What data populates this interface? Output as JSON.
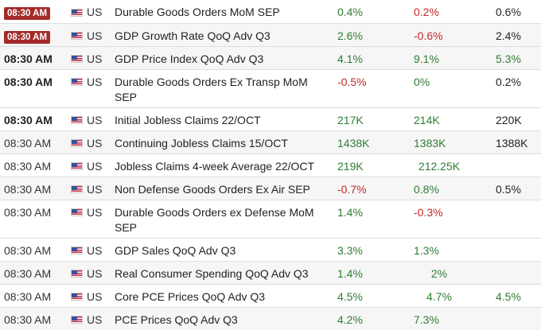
{
  "colors": {
    "badge_bg": "#a52a2a",
    "positive": "#2e7d32",
    "negative": "#c62828",
    "neutral": "#222222"
  },
  "rows": [
    {
      "time": "08:30 AM",
      "time_style": "badge",
      "country": "US",
      "event": "Durable Goods Orders MoM SEP",
      "actual": "0.4%",
      "actual_color": "green",
      "forecast": "0.2%",
      "forecast_color": "red",
      "previous": "0.6%",
      "previous_color": "dark"
    },
    {
      "time": "08:30 AM",
      "time_style": "badge",
      "country": "US",
      "event": "GDP Growth Rate QoQ Adv Q3",
      "actual": "2.6%",
      "actual_color": "green",
      "forecast": "-0.6%",
      "forecast_color": "red",
      "previous": "2.4%",
      "previous_color": "dark"
    },
    {
      "time": "08:30 AM",
      "time_style": "bold",
      "country": "US",
      "event": "GDP Price Index QoQ Adv Q3",
      "actual": "4.1%",
      "actual_color": "green",
      "forecast": "9.1%",
      "forecast_color": "green",
      "previous": "5.3%",
      "previous_color": "green"
    },
    {
      "time": "08:30 AM",
      "time_style": "bold",
      "country": "US",
      "event": "Durable Goods Orders Ex Transp MoM SEP",
      "actual": "-0.5%",
      "actual_color": "red",
      "forecast": "0%",
      "forecast_color": "green",
      "previous": "0.2%",
      "previous_color": "dark"
    },
    {
      "time": "08:30 AM",
      "time_style": "bold",
      "country": "US",
      "event": "Initial Jobless Claims 22/OCT",
      "actual": "217K",
      "actual_color": "green",
      "forecast": "214K",
      "forecast_color": "green",
      "previous": "220K",
      "previous_color": "dark"
    },
    {
      "time": "08:30 AM",
      "time_style": "normal",
      "country": "US",
      "event": "Continuing Jobless Claims 15/OCT",
      "actual": "1438K",
      "actual_color": "green",
      "forecast": "1383K",
      "forecast_color": "green",
      "previous": "1388K",
      "previous_color": "dark"
    },
    {
      "time": "08:30 AM",
      "time_style": "normal",
      "country": "US",
      "event": "Jobless Claims 4-week Average 22/OCT",
      "actual": "219K",
      "actual_color": "green",
      "forecast": "212.25K",
      "forecast_color": "green",
      "previous": "",
      "previous_color": "dark"
    },
    {
      "time": "08:30 AM",
      "time_style": "normal",
      "country": "US",
      "event": "Non Defense Goods Orders Ex Air SEP",
      "actual": "-0.7%",
      "actual_color": "red",
      "forecast": "0.8%",
      "forecast_color": "green",
      "previous": "0.5%",
      "previous_color": "dark"
    },
    {
      "time": "08:30 AM",
      "time_style": "normal",
      "country": "US",
      "event": "Durable Goods Orders ex Defense MoM SEP",
      "actual": "1.4%",
      "actual_color": "green",
      "forecast": "-0.3%",
      "forecast_color": "red",
      "previous": "",
      "previous_color": "dark"
    },
    {
      "time": "08:30 AM",
      "time_style": "normal",
      "country": "US",
      "event": "GDP Sales QoQ Adv Q3",
      "actual": "3.3%",
      "actual_color": "green",
      "forecast": "1.3%",
      "forecast_color": "green",
      "previous": "",
      "previous_color": "dark"
    },
    {
      "time": "08:30 AM",
      "time_style": "normal",
      "country": "US",
      "event": "Real Consumer Spending QoQ Adv Q3",
      "actual": "1.4%",
      "actual_color": "green",
      "forecast": "2%",
      "forecast_color": "green",
      "previous": "",
      "previous_color": "dark"
    },
    {
      "time": "08:30 AM",
      "time_style": "normal",
      "country": "US",
      "event": "Core PCE Prices QoQ Adv Q3",
      "actual": "4.5%",
      "actual_color": "green",
      "forecast": "4.7%",
      "forecast_color": "green",
      "previous": "4.5%",
      "previous_color": "green"
    },
    {
      "time": "08:30 AM",
      "time_style": "normal",
      "country": "US",
      "event": "PCE Prices QoQ Adv Q3",
      "actual": "4.2%",
      "actual_color": "green",
      "forecast": "7.3%",
      "forecast_color": "green",
      "previous": "",
      "previous_color": "dark"
    }
  ]
}
